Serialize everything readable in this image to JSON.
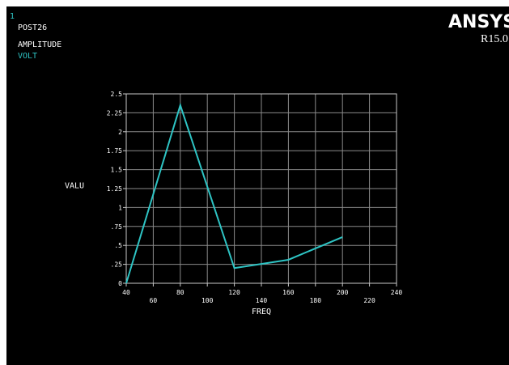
{
  "window": {
    "number": "1",
    "module": "POST26",
    "brand": "ANSYS",
    "version": "R15.0"
  },
  "legend": {
    "heading": "AMPLITUDE",
    "series_name": "VOLT"
  },
  "colors": {
    "background": "#000000",
    "text": "#ffffff",
    "series": "#2ec4c4",
    "axis": "#c8c8c8",
    "grid": "#8a8a8a"
  },
  "chart_data": {
    "type": "line",
    "title": "",
    "xlabel": "FREQ",
    "ylabel": "VALU",
    "xlim": [
      40,
      240
    ],
    "ylim": [
      0,
      2.5
    ],
    "x_ticks": [
      "40",
      "60",
      "80",
      "100",
      "120",
      "140",
      "160",
      "180",
      "200",
      "220",
      "240"
    ],
    "y_ticks": [
      "0",
      ".25",
      ".5",
      ".75",
      "1",
      "1.25",
      "1.5",
      "1.75",
      "2",
      "2.25",
      "2.5"
    ],
    "grid": true,
    "series": [
      {
        "name": "VOLT",
        "x": [
          40,
          80,
          120,
          160,
          200
        ],
        "y": [
          0.0,
          2.35,
          0.2,
          0.31,
          0.61
        ]
      }
    ]
  }
}
